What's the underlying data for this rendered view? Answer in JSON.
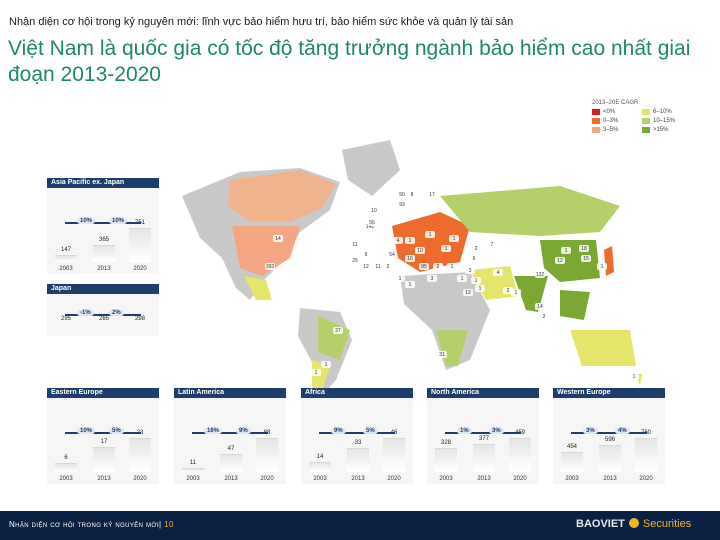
{
  "header": {
    "subtitle": "Nhận diện cơ hội trong kỷ nguyên mới: lĩnh vực bảo hiểm hưu trí, bảo hiểm sức khỏe và quản lý tài sản",
    "title": "Việt Nam là quốc gia có tốc độ tăng trưởng ngành bảo hiểm cao nhất giai đoạn 2013-2020"
  },
  "legend": {
    "title": "2013–20E CAGR",
    "items": [
      {
        "label": "<0%",
        "color": "#d7191c"
      },
      {
        "label": "6–10%",
        "color": "#e5e56b"
      },
      {
        "label": "0–3%",
        "color": "#ec6b2d"
      },
      {
        "label": "10–15%",
        "color": "#b5cf6b"
      },
      {
        "label": "3–5%",
        "color": "#f4a582"
      },
      {
        "label": ">15%",
        "color": "#7aa833"
      }
    ]
  },
  "map_labels": [
    "50",
    "8",
    "17",
    "93",
    "141",
    "10",
    "56",
    "14",
    "11",
    "25",
    "393",
    "12",
    "6",
    "11",
    "2",
    "1",
    "4",
    "1",
    "54",
    "1",
    "10",
    "16",
    "1",
    "2",
    "1",
    "7",
    "85",
    "1",
    "3",
    "1",
    "6",
    "3",
    "13",
    "1",
    "1",
    "4",
    "1",
    "1",
    "2",
    "132",
    "12",
    "1",
    "18",
    "15",
    "1",
    "14",
    "2",
    "27",
    "31",
    "1",
    "1",
    "1",
    "2"
  ],
  "panels": [
    {
      "name": "Asia Pacific ex. Japan",
      "years": [
        "2003",
        "2013",
        "2020"
      ],
      "values": [
        "147",
        "365",
        "751"
      ],
      "growth": [
        "10%",
        "10%"
      ]
    },
    {
      "name": "Japan",
      "years": [
        "2003",
        "2013",
        "2020"
      ],
      "values": [
        "295",
        "265",
        "298"
      ],
      "growth": [
        "-1%",
        "2%"
      ]
    },
    {
      "name": "Eastern Europe",
      "years": [
        "2003",
        "2013",
        "2020"
      ],
      "values": [
        "6",
        "17",
        "23"
      ],
      "growth": [
        "10%",
        "5%"
      ]
    },
    {
      "name": "Latin America",
      "years": [
        "2003",
        "2013",
        "2020"
      ],
      "values": [
        "11",
        "47",
        "88"
      ],
      "growth": [
        "16%",
        "9%"
      ]
    },
    {
      "name": "Africa",
      "years": [
        "2003",
        "2013",
        "2020"
      ],
      "values": [
        "14",
        "33",
        "46"
      ],
      "growth": [
        "9%",
        "5%"
      ]
    },
    {
      "name": "North America",
      "years": [
        "2003",
        "2013",
        "2020"
      ],
      "values": [
        "328",
        "377",
        "459"
      ],
      "growth": [
        "1%",
        "3%"
      ]
    },
    {
      "name": "Western Europe",
      "years": [
        "2003",
        "2013",
        "2020"
      ],
      "values": [
        "454",
        "596",
        "760"
      ],
      "growth": [
        "3%",
        "4%"
      ]
    }
  ],
  "footer": {
    "text": "Nhận diện cơ hội trong kỷ nguyên mới|",
    "page": "10",
    "brand": "BAOVIET",
    "brand_suffix": "Securities"
  }
}
